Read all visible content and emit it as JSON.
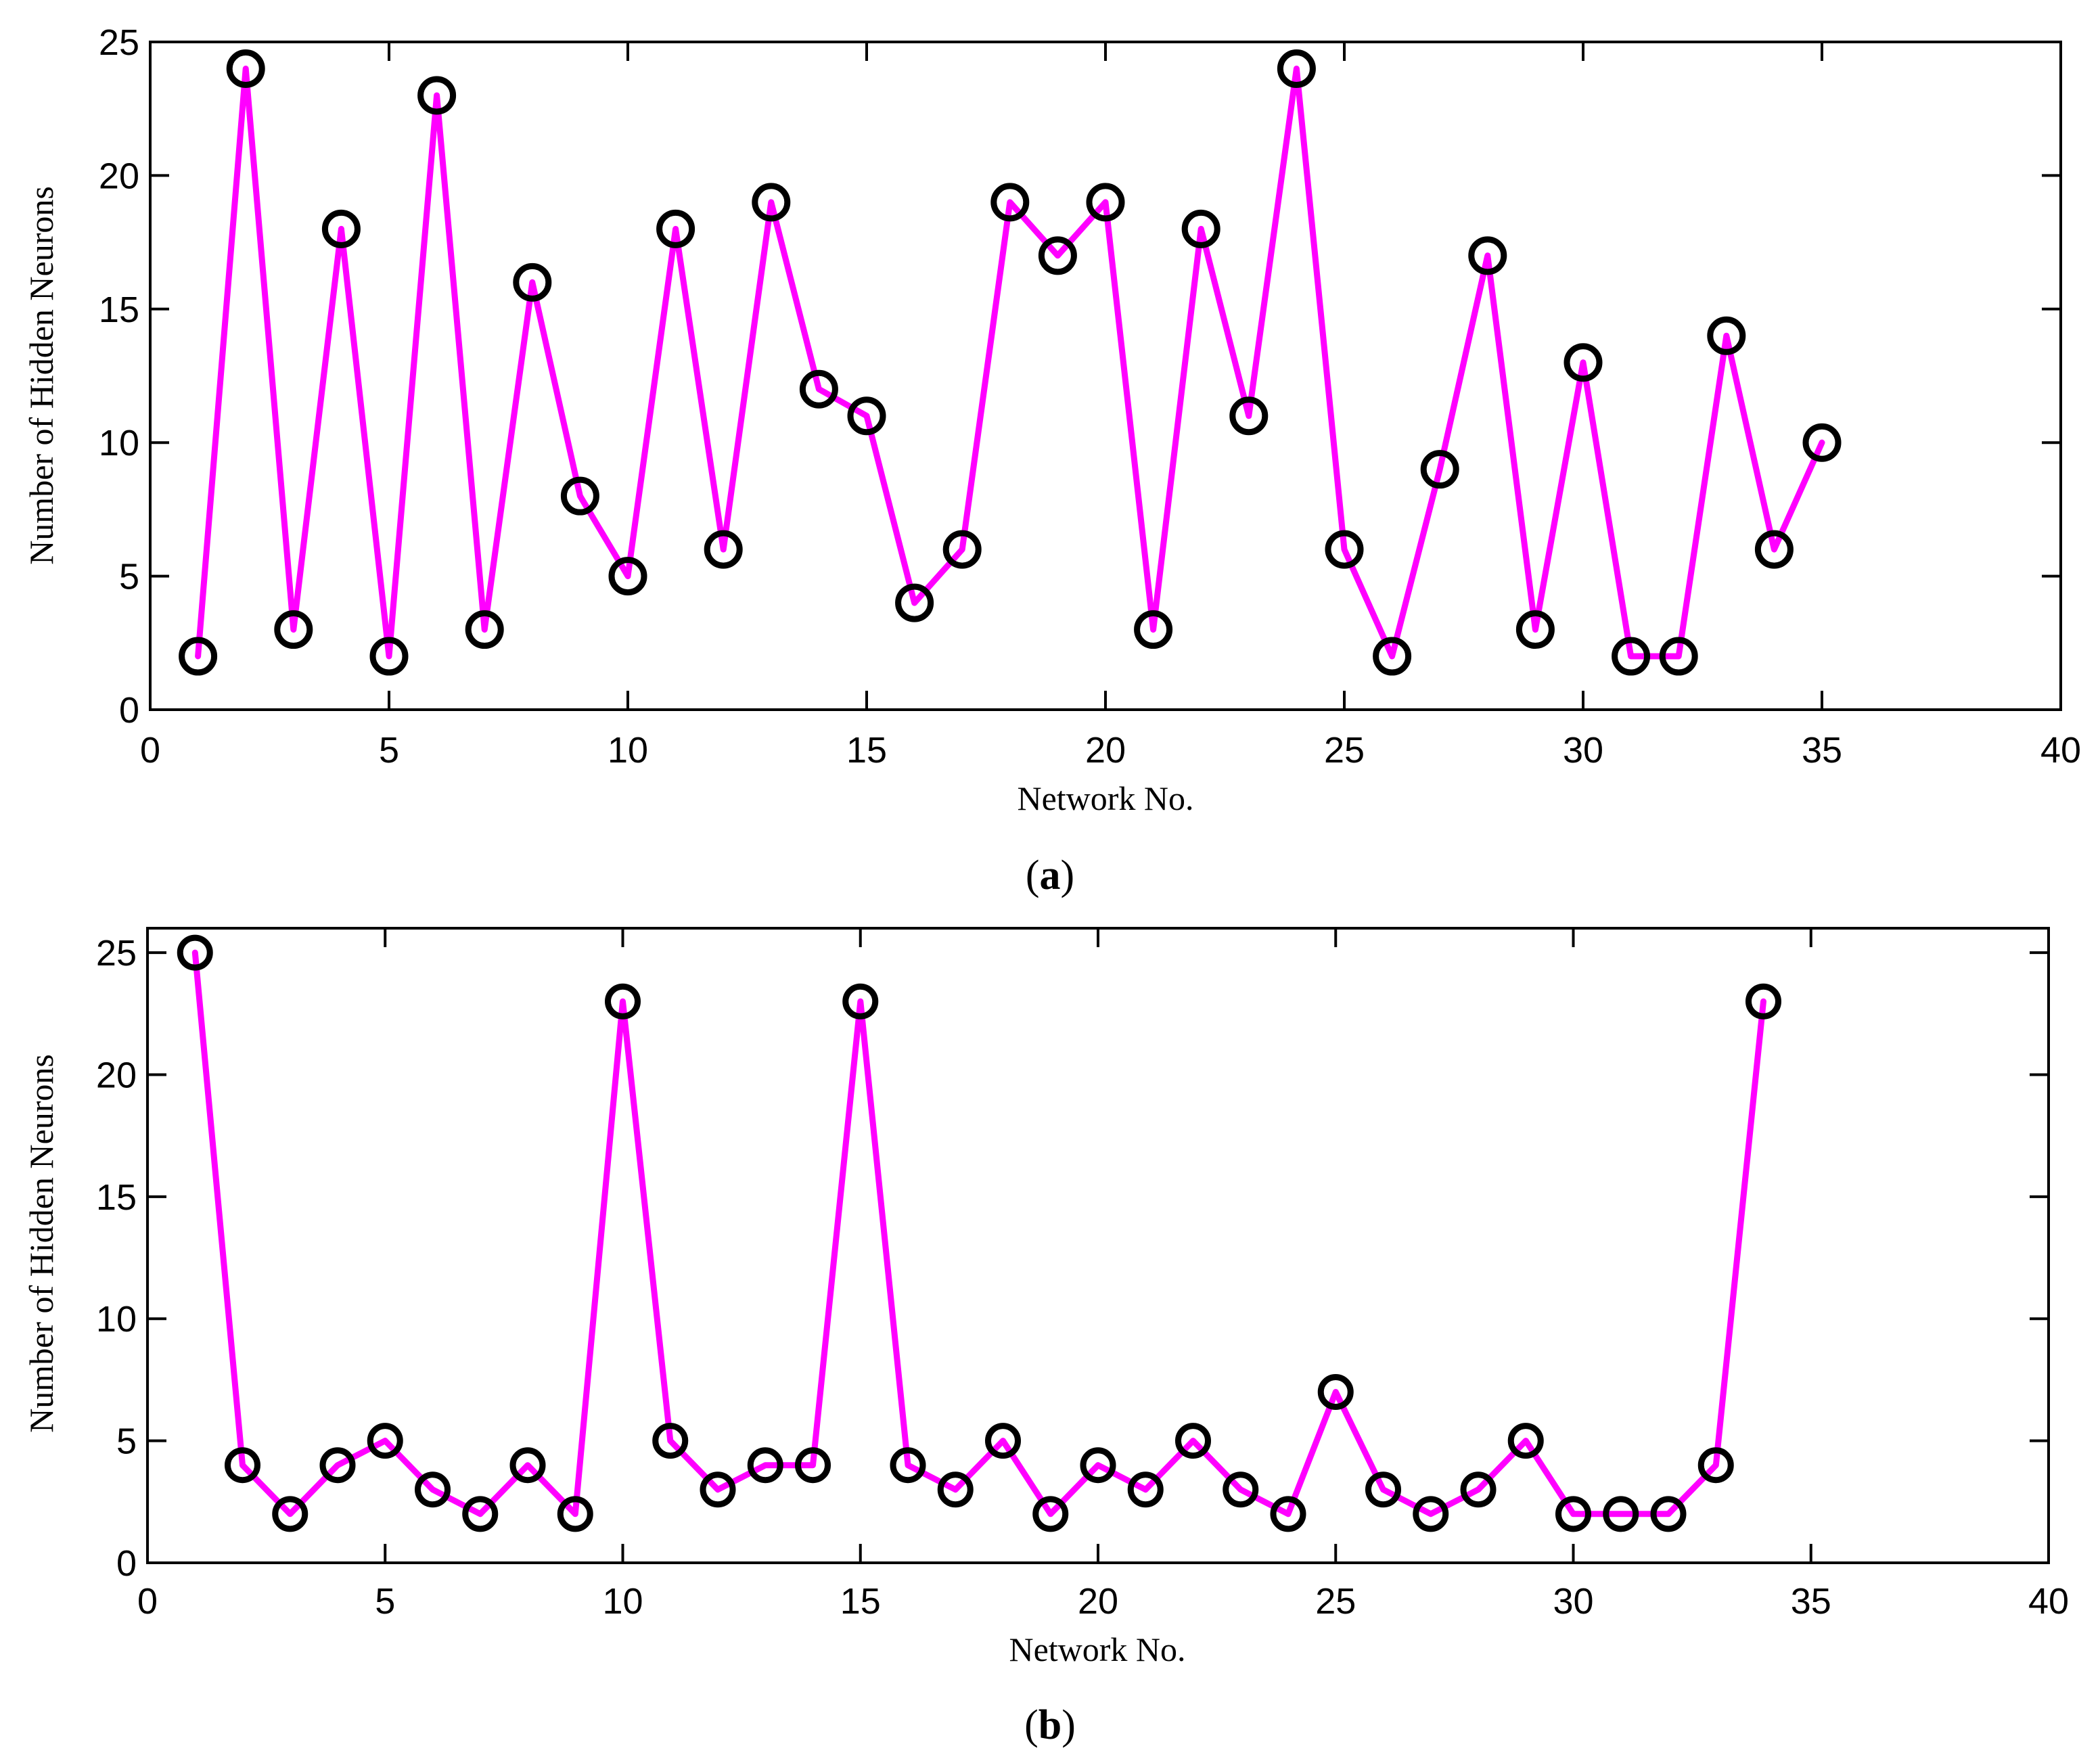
{
  "figure": {
    "panels": [
      {
        "label_open": "(",
        "label_letter": "a",
        "label_close": ")"
      },
      {
        "label_open": "(",
        "label_letter": "b",
        "label_close": ")"
      }
    ]
  },
  "colors": {
    "line": "#ff00ff",
    "marker": "#000000",
    "axis": "#000000"
  },
  "chart_data": [
    {
      "type": "line",
      "panel": "a",
      "title": "",
      "xlabel": "Network No.",
      "ylabel": "Number of Hidden Neurons",
      "xlim": [
        0,
        40
      ],
      "ylim": [
        0,
        25
      ],
      "xticks": [
        0,
        5,
        10,
        15,
        20,
        25,
        30,
        35,
        40
      ],
      "yticks": [
        0,
        5,
        10,
        15,
        20,
        25
      ],
      "grid": false,
      "marker": "circle",
      "series": [
        {
          "name": "Hidden neurons",
          "x": [
            1,
            2,
            3,
            4,
            5,
            6,
            7,
            8,
            9,
            10,
            11,
            12,
            13,
            14,
            15,
            16,
            17,
            18,
            19,
            20,
            21,
            22,
            23,
            24,
            25,
            26,
            27,
            28,
            29,
            30,
            31,
            32,
            33,
            34,
            35
          ],
          "values": [
            2,
            24,
            3,
            18,
            2,
            23,
            3,
            16,
            8,
            5,
            18,
            6,
            19,
            12,
            11,
            4,
            6,
            19,
            17,
            19,
            3,
            18,
            11,
            24,
            6,
            2,
            9,
            17,
            3,
            13,
            2,
            2,
            14,
            6,
            10
          ]
        }
      ]
    },
    {
      "type": "line",
      "panel": "b",
      "title": "",
      "xlabel": "Network No.",
      "ylabel": "Number of Hidden Neurons",
      "xlim": [
        0,
        40
      ],
      "ylim": [
        0,
        26
      ],
      "xticks": [
        0,
        5,
        10,
        15,
        20,
        25,
        30,
        35,
        40
      ],
      "yticks": [
        0,
        5,
        10,
        15,
        20,
        25
      ],
      "grid": false,
      "marker": "circle",
      "series": [
        {
          "name": "Hidden neurons",
          "x": [
            1,
            2,
            3,
            4,
            5,
            6,
            7,
            8,
            9,
            10,
            11,
            12,
            13,
            14,
            15,
            16,
            17,
            18,
            19,
            20,
            21,
            22,
            23,
            24,
            25,
            26,
            27,
            28,
            29,
            30,
            31,
            32,
            33,
            34
          ],
          "values": [
            25,
            4,
            2,
            4,
            5,
            3,
            2,
            4,
            2,
            23,
            5,
            3,
            4,
            4,
            23,
            4,
            3,
            5,
            2,
            4,
            3,
            5,
            3,
            2,
            7,
            3,
            2,
            3,
            5,
            2,
            2,
            2,
            4,
            23
          ]
        }
      ]
    }
  ]
}
